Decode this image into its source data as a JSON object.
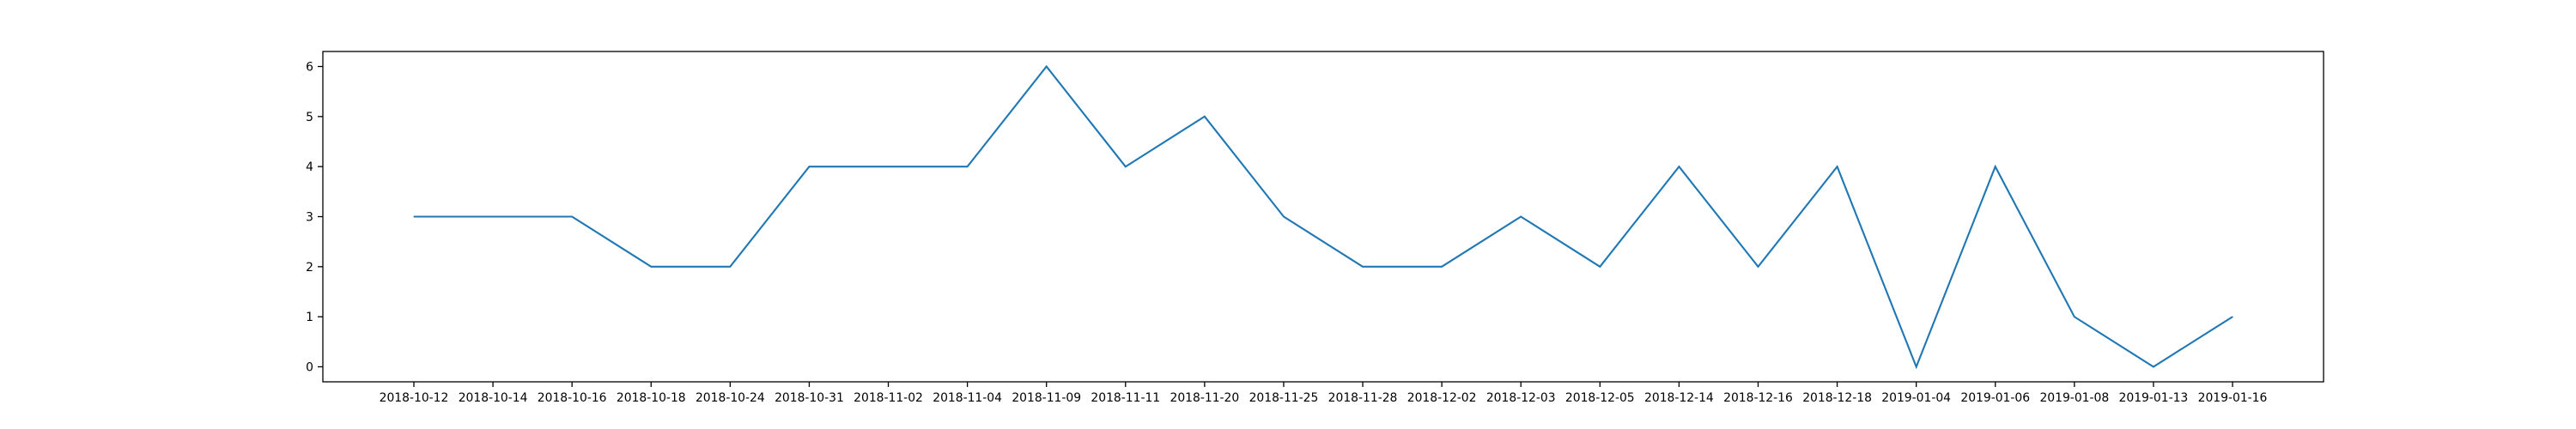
{
  "chart_data": {
    "type": "line",
    "title": "",
    "xlabel": "",
    "ylabel": "",
    "x": [
      "2018-10-12",
      "2018-10-14",
      "2018-10-16",
      "2018-10-18",
      "2018-10-24",
      "2018-10-31",
      "2018-11-02",
      "2018-11-04",
      "2018-11-09",
      "2018-11-11",
      "2018-11-20",
      "2018-11-25",
      "2018-11-28",
      "2018-12-02",
      "2018-12-03",
      "2018-12-05",
      "2018-12-14",
      "2018-12-16",
      "2018-12-18",
      "2019-01-04",
      "2019-01-06",
      "2019-01-08",
      "2019-01-13",
      "2019-01-16"
    ],
    "series": [
      {
        "values": [
          3,
          3,
          3,
          2,
          2,
          4,
          4,
          4,
          6,
          4,
          5,
          3,
          2,
          2,
          3,
          2,
          4,
          2,
          4,
          0,
          4,
          1,
          0,
          1
        ]
      }
    ],
    "ylim": [
      -0.3,
      6.3
    ],
    "yticks": [
      0,
      1,
      2,
      3,
      4,
      5,
      6
    ],
    "grid": false,
    "colors": {
      "line": "#1f77b4",
      "axes": "#000000"
    }
  }
}
